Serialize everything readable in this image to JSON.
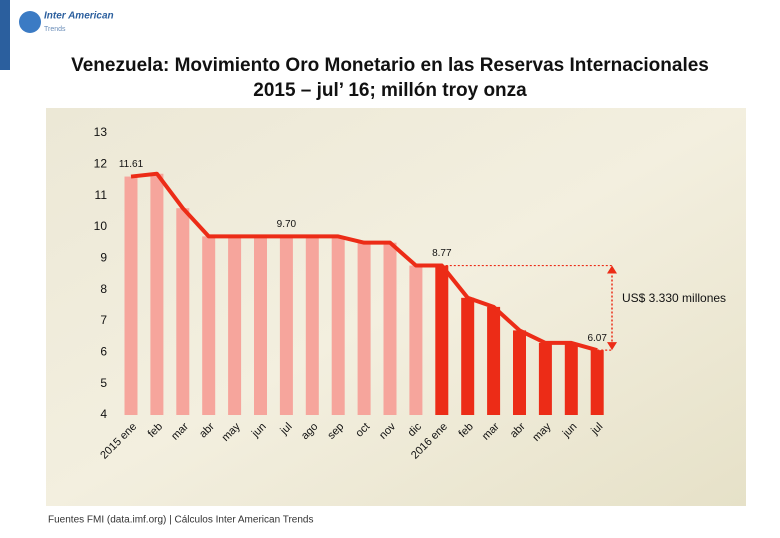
{
  "brand": {
    "name": "Inter American",
    "tagline": "Trends"
  },
  "footer": "Fuentes FMI (data.imf.org) | Cálculos Inter American Trends",
  "chart_data": {
    "type": "bar_line",
    "title": "Venezuela: Movimiento Oro Monetario en las Reservas Internacionales",
    "subtitle": "2015 – jul’ 16; millón troy onza",
    "categories": [
      "2015 ene",
      "feb",
      "mar",
      "abr",
      "may",
      "jun",
      "jul",
      "ago",
      "sep",
      "oct",
      "nov",
      "dic",
      "2016 ene",
      "feb",
      "mar",
      "abr",
      "may",
      "jun",
      "jul"
    ],
    "values": [
      11.61,
      11.7,
      10.6,
      9.7,
      9.7,
      9.7,
      9.7,
      9.7,
      9.7,
      9.5,
      9.5,
      8.77,
      8.77,
      7.74,
      7.45,
      6.7,
      6.3,
      6.3,
      6.07
    ],
    "value_labels": [
      "11.61",
      null,
      null,
      null,
      null,
      null,
      "9.70",
      null,
      null,
      null,
      null,
      null,
      "8.77",
      null,
      null,
      null,
      null,
      null,
      "6.07"
    ],
    "colors": [
      "#f6a59c",
      "#f6a59c",
      "#f6a59c",
      "#f6a59c",
      "#f6a59c",
      "#f6a59c",
      "#f6a59c",
      "#f6a59c",
      "#f6a59c",
      "#f6a59c",
      "#f6a59c",
      "#f6a59c",
      "#ec2c17",
      "#ec2c17",
      "#ec2c17",
      "#ec2c17",
      "#ec2c17",
      "#ec2c17",
      "#ec2c17"
    ],
    "line_color": "#ec2c17",
    "ylim": [
      4,
      13
    ],
    "yticks": [
      4,
      5,
      6,
      7,
      8,
      9,
      10,
      11,
      12,
      13
    ],
    "annotation": "US$ 3.330 millones"
  }
}
